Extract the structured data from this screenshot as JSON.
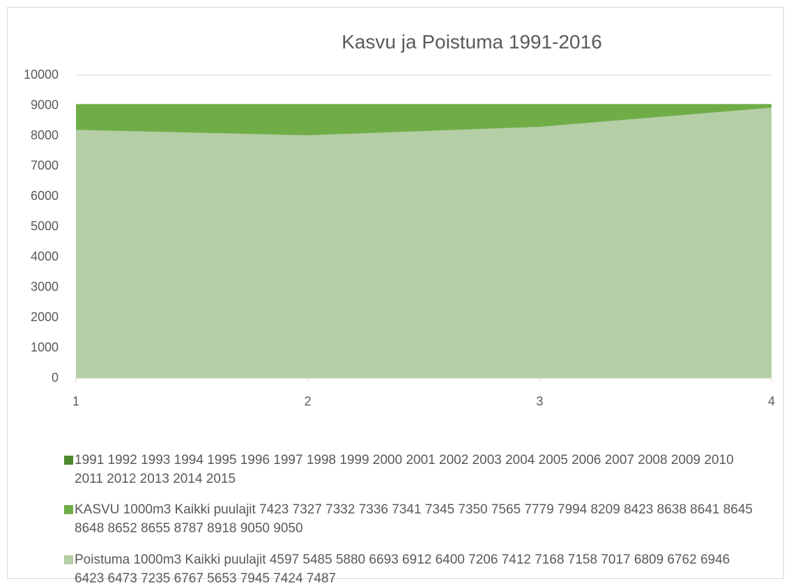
{
  "chart_data": {
    "type": "area",
    "title": "Kasvu ja Poistuma 1991-2016",
    "categories": [
      "1",
      "2",
      "3",
      "4"
    ],
    "series": [
      {
        "name": "1991 1992 1993 1994 1995 1996 1997 1998 1999 2000 2001 2002 2003 2004 2005 2006 2007 2008 2009 2010 2011 2012 2013 2014 2015",
        "color": "#4e8a30",
        "values": [
          0,
          0,
          0,
          0
        ]
      },
      {
        "name": "KASVU 1000m3 Kaikki puulajit 7423 7327 7332 7336 7341 7345 7350 7565 7779 7994 8209 8423 8638 8641 8645 8648 8652 8655 8787 8918 9050 9050",
        "color": "#70ad47",
        "values": [
          9050,
          9050,
          9050,
          9050
        ]
      },
      {
        "name": "Poistuma 1000m3 Kaikki puulajit 4597 5485 5880 6693 6912 6400 7206 7412 7168 7158 7017 6809 6762 6946 6423 6473 7235 6767 5653 7945 7424 7487",
        "color": "#b4cea6",
        "values": [
          8200,
          8020,
          8300,
          8930
        ]
      }
    ],
    "ylim": [
      0,
      10000
    ],
    "yticks": [
      0,
      1000,
      2000,
      3000,
      4000,
      5000,
      6000,
      7000,
      8000,
      9000,
      10000
    ],
    "grid": true
  }
}
